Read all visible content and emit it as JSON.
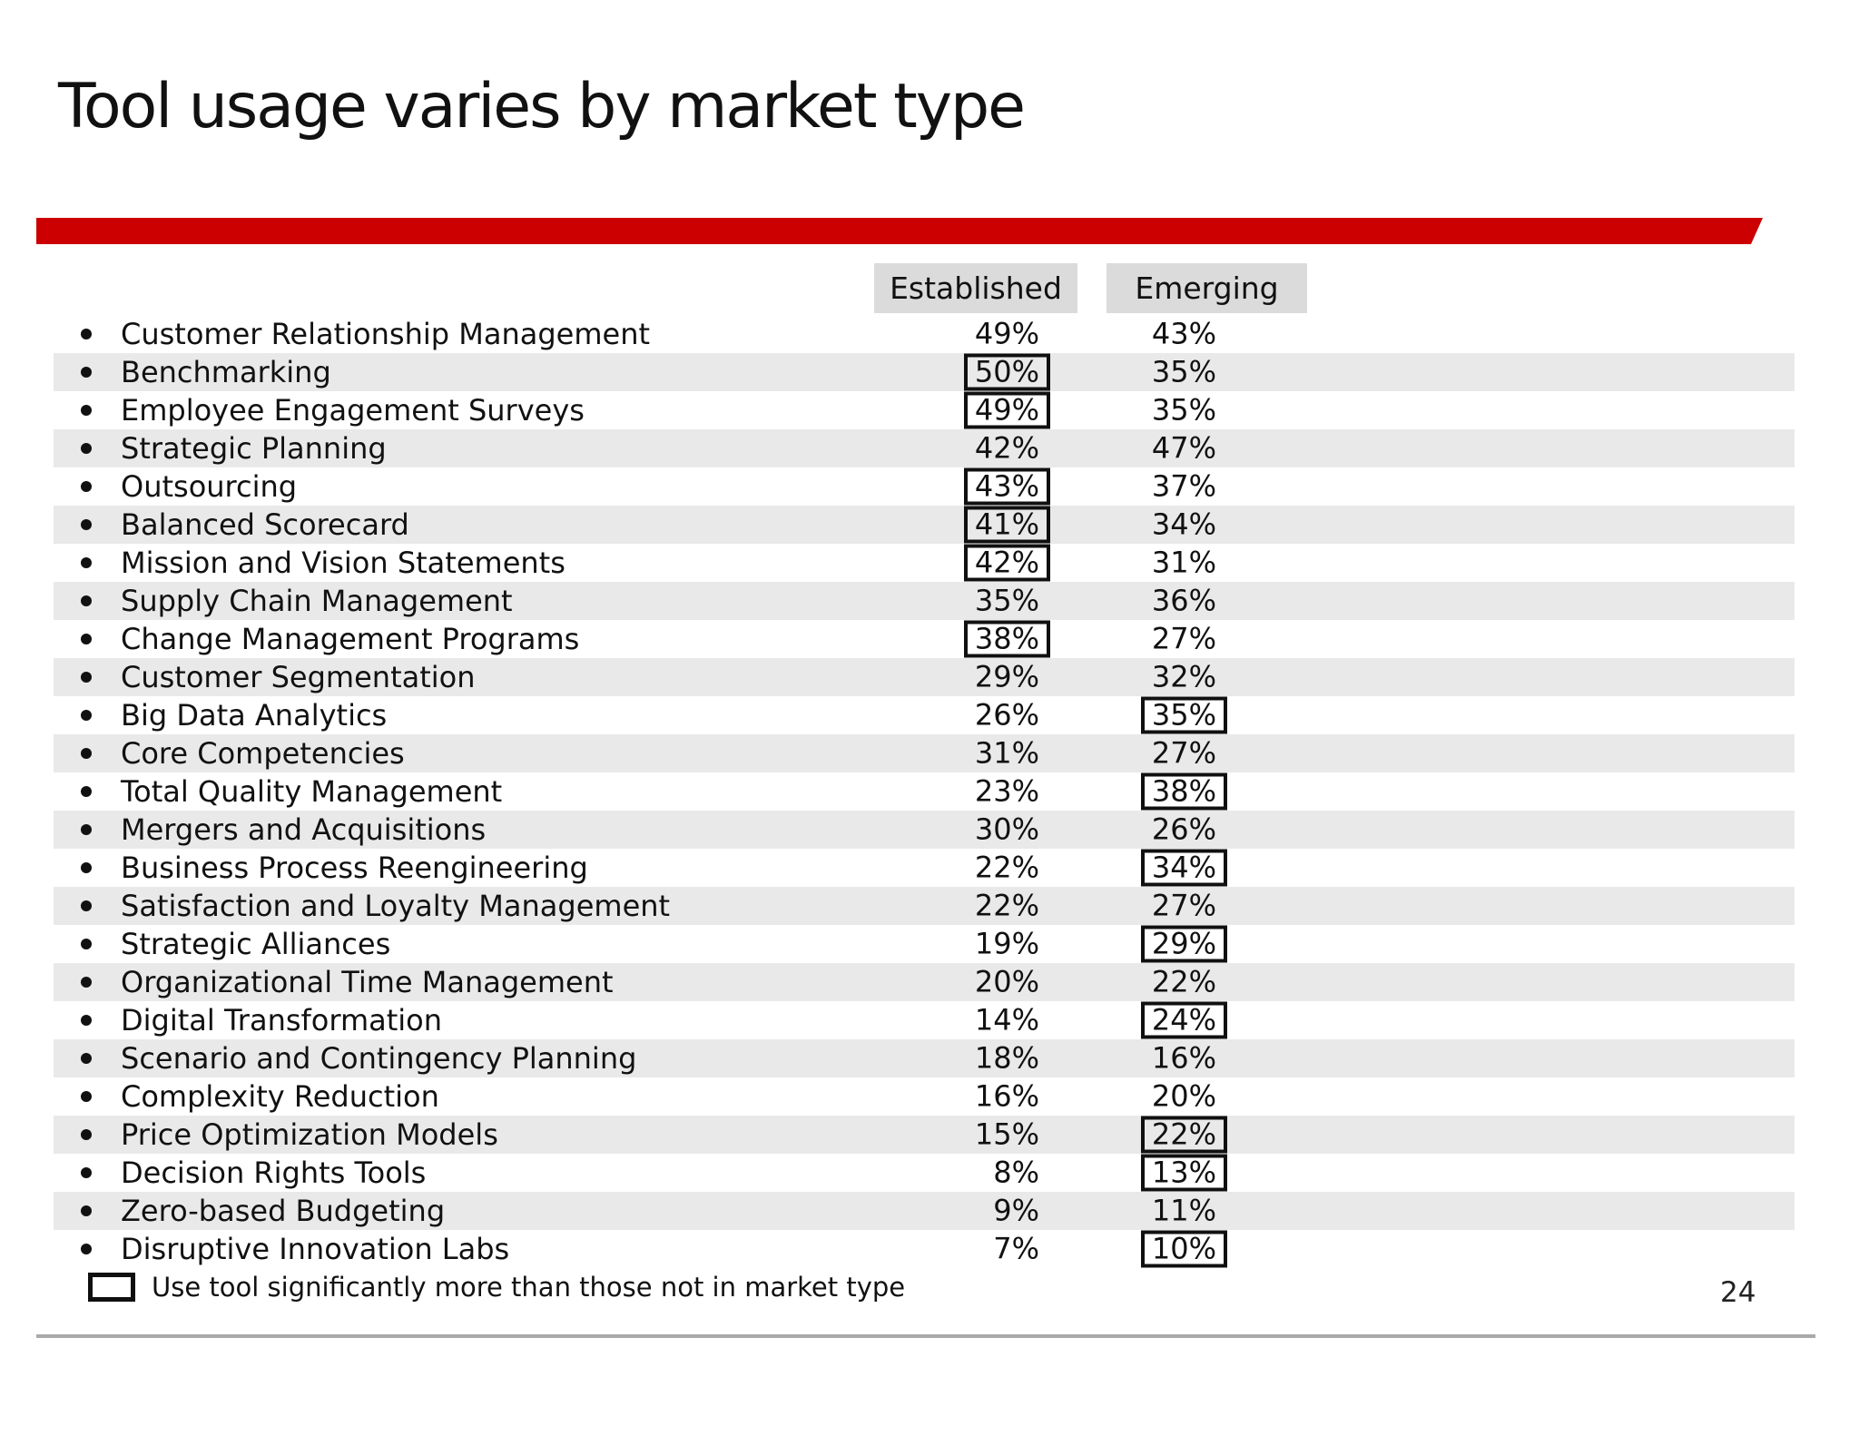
{
  "slide": {
    "title": "Tool usage varies by market type",
    "page_number": "24",
    "accent_color": "#CC0000",
    "row_stripe_color": "#EAE9EA",
    "header_fill_color": "#DBDBDB"
  },
  "table": {
    "columns": [
      {
        "label": "Established"
      },
      {
        "label": "Emerging"
      }
    ],
    "rows": [
      {
        "tool": "Customer Relationship Management",
        "established": "49%",
        "emerging": "43%",
        "established_boxed": false,
        "emerging_boxed": false
      },
      {
        "tool": "Benchmarking",
        "established": "50%",
        "emerging": "35%",
        "established_boxed": true,
        "emerging_boxed": false
      },
      {
        "tool": "Employee Engagement Surveys",
        "established": "49%",
        "emerging": "35%",
        "established_boxed": true,
        "emerging_boxed": false
      },
      {
        "tool": "Strategic Planning",
        "established": "42%",
        "emerging": "47%",
        "established_boxed": false,
        "emerging_boxed": false
      },
      {
        "tool": "Outsourcing",
        "established": "43%",
        "emerging": "37%",
        "established_boxed": true,
        "emerging_boxed": false
      },
      {
        "tool": "Balanced Scorecard",
        "established": "41%",
        "emerging": "34%",
        "established_boxed": true,
        "emerging_boxed": false
      },
      {
        "tool": "Mission and Vision Statements",
        "established": "42%",
        "emerging": "31%",
        "established_boxed": true,
        "emerging_boxed": false
      },
      {
        "tool": "Supply Chain Management",
        "established": "35%",
        "emerging": "36%",
        "established_boxed": false,
        "emerging_boxed": false
      },
      {
        "tool": "Change Management Programs",
        "established": "38%",
        "emerging": "27%",
        "established_boxed": true,
        "emerging_boxed": false
      },
      {
        "tool": "Customer Segmentation",
        "established": "29%",
        "emerging": "32%",
        "established_boxed": false,
        "emerging_boxed": false
      },
      {
        "tool": "Big Data Analytics",
        "established": "26%",
        "emerging": "35%",
        "established_boxed": false,
        "emerging_boxed": true
      },
      {
        "tool": "Core Competencies",
        "established": "31%",
        "emerging": "27%",
        "established_boxed": false,
        "emerging_boxed": false
      },
      {
        "tool": "Total Quality Management",
        "established": "23%",
        "emerging": "38%",
        "established_boxed": false,
        "emerging_boxed": true
      },
      {
        "tool": "Mergers and Acquisitions",
        "established": "30%",
        "emerging": "26%",
        "established_boxed": false,
        "emerging_boxed": false
      },
      {
        "tool": "Business Process Reengineering",
        "established": "22%",
        "emerging": "34%",
        "established_boxed": false,
        "emerging_boxed": true
      },
      {
        "tool": "Satisfaction and Loyalty Management",
        "established": "22%",
        "emerging": "27%",
        "established_boxed": false,
        "emerging_boxed": false
      },
      {
        "tool": "Strategic Alliances",
        "established": "19%",
        "emerging": "29%",
        "established_boxed": false,
        "emerging_boxed": true
      },
      {
        "tool": "Organizational Time Management",
        "established": "20%",
        "emerging": "22%",
        "established_boxed": false,
        "emerging_boxed": false
      },
      {
        "tool": "Digital Transformation",
        "established": "14%",
        "emerging": "24%",
        "established_boxed": false,
        "emerging_boxed": true
      },
      {
        "tool": "Scenario and Contingency Planning",
        "established": "18%",
        "emerging": "16%",
        "established_boxed": false,
        "emerging_boxed": false
      },
      {
        "tool": "Complexity Reduction",
        "established": "16%",
        "emerging": "20%",
        "established_boxed": false,
        "emerging_boxed": false
      },
      {
        "tool": "Price Optimization Models",
        "established": "15%",
        "emerging": "22%",
        "established_boxed": false,
        "emerging_boxed": true
      },
      {
        "tool": "Decision Rights Tools",
        "established": "8%",
        "emerging": "13%",
        "established_boxed": false,
        "emerging_boxed": true
      },
      {
        "tool": "Zero-based Budgeting",
        "established": "9%",
        "emerging": "11%",
        "established_boxed": false,
        "emerging_boxed": false
      },
      {
        "tool": "Disruptive Innovation Labs",
        "established": "7%",
        "emerging": "10%",
        "established_boxed": false,
        "emerging_boxed": true
      }
    ]
  },
  "legend": {
    "icon": "box-outline-icon",
    "label": "Use tool significantly more than those not in market type"
  },
  "chart_data": {
    "type": "table",
    "title": "Tool usage varies by market type",
    "categories": [
      "Customer Relationship Management",
      "Benchmarking",
      "Employee Engagement Surveys",
      "Strategic Planning",
      "Outsourcing",
      "Balanced Scorecard",
      "Mission and Vision Statements",
      "Supply Chain Management",
      "Change Management Programs",
      "Customer Segmentation",
      "Big Data Analytics",
      "Core Competencies",
      "Total Quality Management",
      "Mergers and Acquisitions",
      "Business Process Reengineering",
      "Satisfaction and Loyalty Management",
      "Strategic Alliances",
      "Organizational Time Management",
      "Digital Transformation",
      "Scenario and Contingency Planning",
      "Complexity Reduction",
      "Price Optimization Models",
      "Decision Rights Tools",
      "Zero-based Budgeting",
      "Disruptive Innovation Labs"
    ],
    "series": [
      {
        "name": "Established",
        "values": [
          49,
          50,
          49,
          42,
          43,
          41,
          42,
          35,
          38,
          29,
          26,
          31,
          23,
          30,
          22,
          22,
          19,
          20,
          14,
          18,
          16,
          15,
          8,
          9,
          7
        ]
      },
      {
        "name": "Emerging",
        "values": [
          43,
          35,
          35,
          47,
          37,
          34,
          31,
          36,
          27,
          32,
          35,
          27,
          38,
          26,
          34,
          27,
          29,
          22,
          24,
          16,
          20,
          22,
          13,
          11,
          10
        ]
      }
    ],
    "significantly_higher": {
      "Established": [
        "Benchmarking",
        "Employee Engagement Surveys",
        "Outsourcing",
        "Balanced Scorecard",
        "Mission and Vision Statements",
        "Change Management Programs"
      ],
      "Emerging": [
        "Big Data Analytics",
        "Total Quality Management",
        "Business Process Reengineering",
        "Strategic Alliances",
        "Digital Transformation",
        "Price Optimization Models",
        "Decision Rights Tools",
        "Disruptive Innovation Labs"
      ]
    },
    "annotation": "Use tool significantly more than those not in market type",
    "units": "%"
  }
}
